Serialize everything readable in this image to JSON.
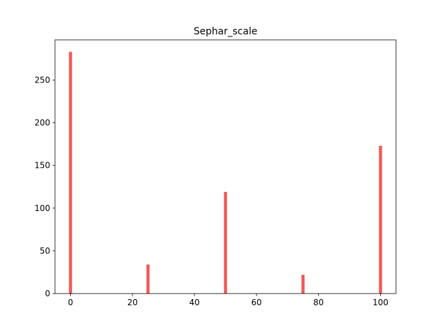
{
  "chart_data": {
    "type": "bar",
    "title": "Sephar_scale",
    "xlabel": "",
    "ylabel": "",
    "x": [
      0,
      25,
      50,
      75,
      100
    ],
    "values": [
      283,
      34,
      119,
      22,
      173
    ],
    "xlim": [
      -5,
      105
    ],
    "ylim": [
      0,
      297
    ],
    "x_ticks": [
      0,
      20,
      40,
      60,
      80,
      100
    ],
    "y_ticks": [
      0,
      50,
      100,
      150,
      200,
      250
    ],
    "bar_width": 1,
    "bar_color": "#f05050",
    "grid": false,
    "legend": "none"
  }
}
